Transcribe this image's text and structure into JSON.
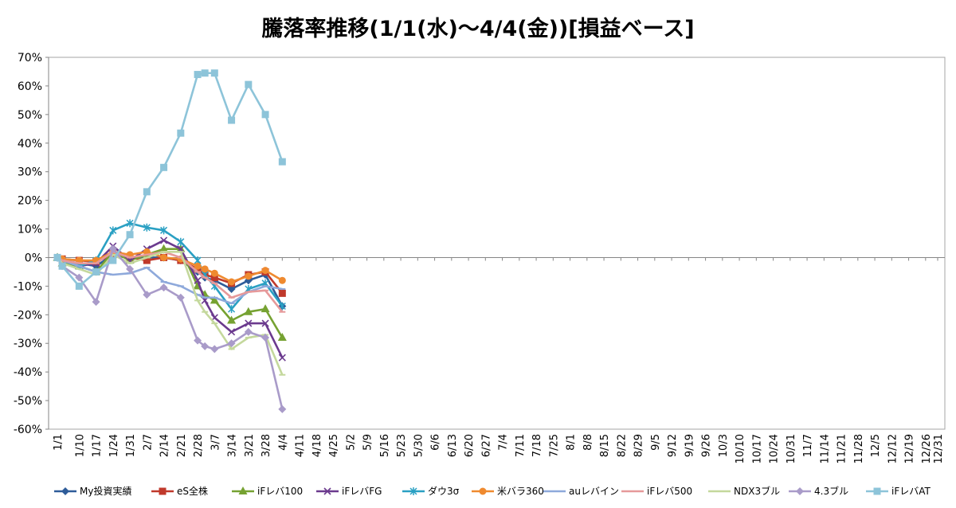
{
  "chart_data": {
    "type": "line",
    "title": "騰落率推移(1/1(水)～4/4(金))[損益ベース]",
    "xlabel": "",
    "ylabel": "",
    "ylim": [
      -0.6,
      0.7
    ],
    "yticks": [
      0.7,
      0.6,
      0.5,
      0.4,
      0.3,
      0.2,
      0.1,
      0,
      -0.1,
      -0.2,
      -0.3,
      -0.4,
      -0.5,
      -0.6
    ],
    "ytick_labels": [
      "70%",
      "60%",
      "50%",
      "40%",
      "30%",
      "20%",
      "10%",
      "0%",
      "-10%",
      "-20%",
      "-30%",
      "-40%",
      "-50%",
      "-60%"
    ],
    "grid": "horizontal zero line only",
    "legend_position": "bottom",
    "categories": [
      "1/1",
      "1/10",
      "1/17",
      "1/24",
      "1/31",
      "2/7",
      "2/14",
      "2/21",
      "2/28",
      "3/7",
      "3/14",
      "3/21",
      "3/28",
      "4/4",
      "4/11",
      "4/18",
      "4/25",
      "5/2",
      "5/9",
      "5/16",
      "5/23",
      "5/30",
      "6/6",
      "6/13",
      "6/20",
      "6/27",
      "7/4",
      "7/11",
      "7/18",
      "7/25",
      "8/1",
      "8/8",
      "8/15",
      "8/22",
      "8/29",
      "9/5",
      "9/12",
      "9/19",
      "9/26",
      "10/3",
      "10/10",
      "10/17",
      "10/24",
      "10/31",
      "11/7",
      "11/14",
      "11/21",
      "11/28",
      "12/5",
      "12/12",
      "12/19",
      "12/26",
      "12/31"
    ],
    "x": [
      "1/1",
      "1/3",
      "1/10",
      "1/17",
      "1/24",
      "1/31",
      "2/7",
      "2/14",
      "2/21",
      "2/28",
      "3/3",
      "3/7",
      "3/14",
      "3/21",
      "3/28",
      "4/4"
    ],
    "series": [
      {
        "name": "My投資実績",
        "color": "#2E5C99",
        "marker": "diamond",
        "values": [
          0,
          -0.01,
          -0.02,
          -0.03,
          0.01,
          0.0,
          0.0,
          0.0,
          -0.01,
          -0.05,
          -0.07,
          -0.08,
          -0.11,
          -0.08,
          -0.06,
          -0.17
        ]
      },
      {
        "name": "eS全株",
        "color": "#C0392B",
        "marker": "square",
        "values": [
          0,
          -0.005,
          -0.01,
          -0.015,
          0.01,
          0.0,
          -0.01,
          0.0,
          -0.01,
          -0.04,
          -0.06,
          -0.07,
          -0.09,
          -0.06,
          -0.05,
          -0.125
        ]
      },
      {
        "name": "iFレバ100",
        "color": "#76A232",
        "marker": "triangle",
        "values": [
          0,
          -0.02,
          -0.03,
          -0.05,
          0.02,
          -0.01,
          0.01,
          0.03,
          0.03,
          -0.1,
          -0.13,
          -0.15,
          -0.22,
          -0.19,
          -0.18,
          -0.28
        ]
      },
      {
        "name": "iFレバFG",
        "color": "#6B3A8E",
        "marker": "x",
        "values": [
          0,
          -0.01,
          -0.03,
          -0.02,
          0.04,
          -0.01,
          0.03,
          0.06,
          0.03,
          -0.08,
          -0.15,
          -0.21,
          -0.26,
          -0.23,
          -0.23,
          -0.35
        ]
      },
      {
        "name": "ダウ3σ",
        "color": "#2AA0C3",
        "marker": "star",
        "values": [
          0,
          -0.01,
          -0.03,
          -0.01,
          0.095,
          0.12,
          0.105,
          0.095,
          0.055,
          -0.01,
          -0.06,
          -0.1,
          -0.18,
          -0.11,
          -0.09,
          -0.17
        ]
      },
      {
        "name": "米バラ360",
        "color": "#EF8A2F",
        "marker": "circle",
        "values": [
          0,
          -0.005,
          -0.01,
          -0.01,
          0.02,
          0.01,
          0.02,
          0.0,
          -0.005,
          -0.03,
          -0.04,
          -0.055,
          -0.085,
          -0.065,
          -0.045,
          -0.08
        ]
      },
      {
        "name": "auレバイン",
        "color": "#8EA9DB",
        "marker": "dash",
        "values": [
          0,
          -0.01,
          -0.03,
          -0.05,
          -0.06,
          -0.055,
          -0.035,
          -0.085,
          -0.1,
          -0.13,
          -0.14,
          -0.14,
          -0.16,
          -0.12,
          -0.1,
          -0.11
        ]
      },
      {
        "name": "iFレバ500",
        "color": "#E6999A",
        "marker": "dash",
        "values": [
          0,
          -0.01,
          -0.02,
          -0.02,
          0.02,
          0.0,
          0.01,
          0.02,
          0.0,
          -0.05,
          -0.07,
          -0.09,
          -0.14,
          -0.12,
          -0.115,
          -0.19
        ]
      },
      {
        "name": "NDX3ブル",
        "color": "#C4D89C",
        "marker": "dash",
        "values": [
          0,
          -0.02,
          -0.04,
          -0.06,
          0.01,
          -0.02,
          0.0,
          0.02,
          0.02,
          -0.15,
          -0.19,
          -0.23,
          -0.32,
          -0.28,
          -0.27,
          -0.41
        ]
      },
      {
        "name": "4.3ブル",
        "color": "#A99BC9",
        "marker": "diamond",
        "values": [
          0,
          -0.03,
          -0.07,
          -0.155,
          0.03,
          -0.04,
          -0.13,
          -0.105,
          -0.14,
          -0.29,
          -0.31,
          -0.32,
          -0.3,
          -0.26,
          -0.28,
          -0.53
        ]
      },
      {
        "name": "iFレバAT",
        "color": "#8DC4D9",
        "marker": "square",
        "values": [
          0,
          -0.03,
          -0.1,
          -0.05,
          -0.01,
          0.08,
          0.23,
          0.315,
          0.435,
          0.64,
          0.645,
          0.645,
          0.48,
          0.605,
          0.5,
          0.335
        ]
      }
    ]
  }
}
